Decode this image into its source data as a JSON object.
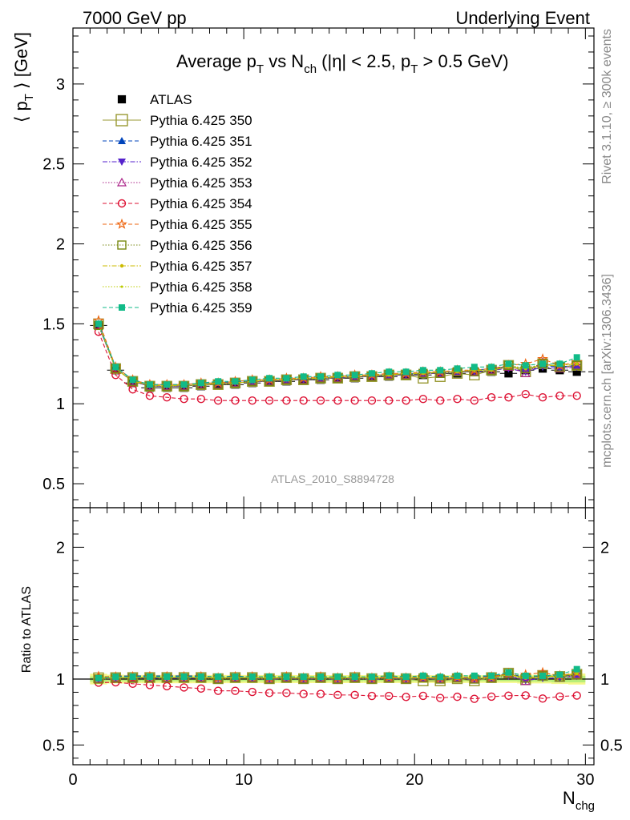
{
  "header": {
    "left": "7000 GeV pp",
    "right": "Underlying Event"
  },
  "side_labels": {
    "rivet": "Rivet 3.1.10, ≥ 300k events",
    "mcplots": "mcplots.cern.ch [arXiv:1306.3436]"
  },
  "chart_data": {
    "type": "line",
    "title_parts": [
      "Average p",
      "T",
      " vs N",
      "ch",
      " (|η| < 2.5, p",
      "T",
      " > 0.5 GeV)"
    ],
    "ylabel_main_parts": [
      "⟨ p",
      "T",
      " ⟩ [GeV]"
    ],
    "ylabel_ratio": "Ratio to ATLAS",
    "xlabel_parts": [
      "N",
      "chg"
    ],
    "watermark": "ATLAS_2010_S8894728",
    "xlim": [
      0,
      30.5
    ],
    "ylim_main": [
      0.35,
      3.35
    ],
    "ylim_ratio": [
      0.35,
      2.3
    ],
    "x_ticks": [
      0,
      10,
      20,
      30
    ],
    "y_ticks_main": [
      0.5,
      1,
      1.5,
      2,
      2.5,
      3
    ],
    "y_tick_labels_main": [
      "0.5",
      "1",
      "1.5",
      "2",
      "2.5",
      "3"
    ],
    "y_ticks_ratio": [
      0.5,
      1,
      2
    ],
    "y_tick_labels_ratio": [
      "0.5",
      "1",
      "2"
    ],
    "x": [
      1.5,
      2.5,
      3.5,
      4.5,
      5.5,
      6.5,
      7.5,
      8.5,
      9.5,
      10.5,
      11.5,
      12.5,
      13.5,
      14.5,
      15.5,
      16.5,
      17.5,
      18.5,
      19.5,
      20.5,
      21.5,
      22.5,
      23.5,
      24.5,
      25.5,
      26.5,
      27.5,
      28.5,
      29.5
    ],
    "atlas": {
      "name": "ATLAS",
      "values": [
        1.49,
        1.21,
        1.13,
        1.1,
        1.1,
        1.1,
        1.11,
        1.12,
        1.12,
        1.13,
        1.14,
        1.14,
        1.15,
        1.15,
        1.16,
        1.16,
        1.17,
        1.17,
        1.18,
        1.18,
        1.19,
        1.19,
        1.2,
        1.2,
        1.19,
        1.21,
        1.22,
        1.21,
        1.2
      ],
      "band_inner": [
        0.03,
        0.02,
        0.02,
        0.02,
        0.02,
        0.02,
        0.02,
        0.02,
        0.02,
        0.02,
        0.02,
        0.02,
        0.02,
        0.02,
        0.02,
        0.02,
        0.02,
        0.02,
        0.02,
        0.02,
        0.02,
        0.02,
        0.02,
        0.02,
        0.02,
        0.025,
        0.025,
        0.03,
        0.03
      ],
      "band_outer": [
        0.06,
        0.04,
        0.035,
        0.035,
        0.035,
        0.035,
        0.035,
        0.035,
        0.035,
        0.035,
        0.035,
        0.035,
        0.035,
        0.035,
        0.035,
        0.035,
        0.035,
        0.035,
        0.035,
        0.035,
        0.035,
        0.035,
        0.035,
        0.035,
        0.035,
        0.04,
        0.04,
        0.045,
        0.05
      ]
    },
    "series": [
      {
        "name": "Pythia 6.425 350",
        "color": "#999933",
        "dash": "solid",
        "marker": "square-open",
        "offset": 0.003,
        "values": [
          1.5,
          1.22,
          1.14,
          1.11,
          1.11,
          1.11,
          1.12,
          1.12,
          1.13,
          1.14,
          1.14,
          1.15,
          1.15,
          1.16,
          1.16,
          1.17,
          1.17,
          1.18,
          1.18,
          1.16,
          1.17,
          1.19,
          1.18,
          1.21,
          1.24,
          1.2,
          1.25,
          1.23,
          1.24
        ]
      },
      {
        "name": "Pythia 6.425 351",
        "color": "#0044bb",
        "dash": "5,3",
        "marker": "triangle-up-filled",
        "offset": 0.006,
        "values": [
          1.5,
          1.23,
          1.15,
          1.12,
          1.12,
          1.12,
          1.13,
          1.13,
          1.14,
          1.14,
          1.15,
          1.15,
          1.16,
          1.16,
          1.17,
          1.17,
          1.18,
          1.18,
          1.19,
          1.19,
          1.2,
          1.2,
          1.21,
          1.22,
          1.23,
          1.22,
          1.24,
          1.23,
          1.24
        ]
      },
      {
        "name": "Pythia 6.425 352",
        "color": "#5522cc",
        "dash": "6,2,1.5,2",
        "marker": "triangle-down-filled",
        "offset": -0.002,
        "values": [
          1.49,
          1.22,
          1.14,
          1.11,
          1.11,
          1.11,
          1.12,
          1.13,
          1.13,
          1.14,
          1.14,
          1.15,
          1.15,
          1.16,
          1.16,
          1.17,
          1.17,
          1.18,
          1.18,
          1.19,
          1.19,
          1.2,
          1.2,
          1.21,
          1.22,
          1.2,
          1.23,
          1.22,
          1.23
        ]
      },
      {
        "name": "Pythia 6.425 353",
        "color": "#aa2288",
        "dash": "1.5,2",
        "marker": "triangle-up-open",
        "offset": 0.0,
        "values": [
          1.49,
          1.22,
          1.14,
          1.11,
          1.11,
          1.11,
          1.12,
          1.12,
          1.13,
          1.14,
          1.14,
          1.15,
          1.15,
          1.16,
          1.16,
          1.17,
          1.17,
          1.18,
          1.18,
          1.19,
          1.19,
          1.2,
          1.2,
          1.21,
          1.23,
          1.19,
          1.26,
          1.22,
          1.24
        ]
      },
      {
        "name": "Pythia 6.425 354",
        "color": "#dd1133",
        "dash": "5,3",
        "marker": "circle-open",
        "offset": 0.0,
        "values": [
          1.45,
          1.18,
          1.09,
          1.05,
          1.04,
          1.03,
          1.03,
          1.02,
          1.02,
          1.02,
          1.02,
          1.02,
          1.02,
          1.02,
          1.02,
          1.02,
          1.02,
          1.02,
          1.02,
          1.03,
          1.02,
          1.03,
          1.02,
          1.04,
          1.04,
          1.06,
          1.04,
          1.05,
          1.05
        ]
      },
      {
        "name": "Pythia 6.425 355",
        "color": "#ee6611",
        "dash": "5,3",
        "marker": "star-open",
        "offset": 0.0,
        "values": [
          1.52,
          1.23,
          1.15,
          1.12,
          1.12,
          1.12,
          1.13,
          1.13,
          1.14,
          1.15,
          1.15,
          1.16,
          1.16,
          1.17,
          1.17,
          1.18,
          1.18,
          1.19,
          1.19,
          1.2,
          1.2,
          1.21,
          1.21,
          1.22,
          1.24,
          1.25,
          1.28,
          1.24,
          1.26
        ]
      },
      {
        "name": "Pythia 6.425 356",
        "color": "#778811",
        "dash": "1.5,2",
        "marker": "square-open",
        "offset": 0.0,
        "values": [
          1.49,
          1.22,
          1.14,
          1.11,
          1.11,
          1.11,
          1.12,
          1.12,
          1.13,
          1.14,
          1.14,
          1.15,
          1.15,
          1.16,
          1.16,
          1.17,
          1.17,
          1.18,
          1.18,
          1.19,
          1.19,
          1.2,
          1.2,
          1.21,
          1.24,
          1.22,
          1.25,
          1.23,
          1.24
        ]
      },
      {
        "name": "Pythia 6.425 357",
        "color": "#ccbb00",
        "dash": "6,2,1.5,2",
        "marker": "dot",
        "offset": 0.0,
        "values": [
          1.5,
          1.22,
          1.14,
          1.12,
          1.11,
          1.12,
          1.12,
          1.13,
          1.13,
          1.14,
          1.15,
          1.15,
          1.16,
          1.16,
          1.17,
          1.17,
          1.18,
          1.18,
          1.19,
          1.19,
          1.2,
          1.2,
          1.21,
          1.21,
          1.23,
          1.22,
          1.24,
          1.24,
          1.25
        ]
      },
      {
        "name": "Pythia 6.425 358",
        "color": "#bbcc00",
        "dash": "1.5,2",
        "marker": "dot-small",
        "offset": 0.0,
        "values": [
          1.5,
          1.22,
          1.14,
          1.12,
          1.11,
          1.12,
          1.12,
          1.13,
          1.13,
          1.14,
          1.15,
          1.15,
          1.16,
          1.16,
          1.17,
          1.17,
          1.18,
          1.18,
          1.19,
          1.19,
          1.2,
          1.2,
          1.21,
          1.21,
          1.23,
          1.22,
          1.24,
          1.24,
          1.25
        ]
      },
      {
        "name": "Pythia 6.425 359",
        "color": "#11bb88",
        "dash": "5,3",
        "marker": "square-filled",
        "offset": 0.0,
        "values": [
          1.5,
          1.23,
          1.15,
          1.12,
          1.12,
          1.12,
          1.13,
          1.14,
          1.14,
          1.15,
          1.16,
          1.16,
          1.17,
          1.17,
          1.18,
          1.18,
          1.19,
          1.2,
          1.2,
          1.21,
          1.21,
          1.22,
          1.23,
          1.23,
          1.25,
          1.24,
          1.25,
          1.25,
          1.29
        ]
      }
    ]
  }
}
